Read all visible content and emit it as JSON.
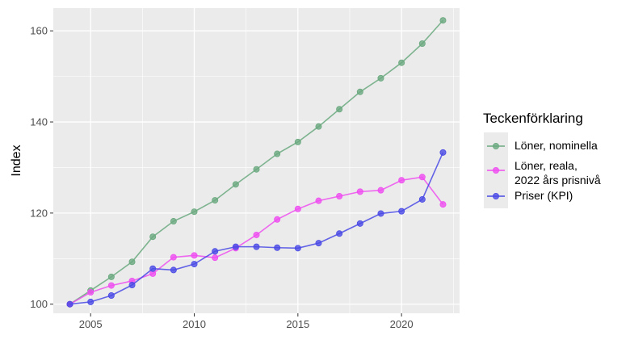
{
  "chart_data": {
    "type": "line",
    "xlabel": "",
    "ylabel": "Index",
    "xlim": [
      2003.2,
      2022.8
    ],
    "ylim": [
      98,
      165
    ],
    "x_ticks": [
      2005,
      2010,
      2015,
      2020
    ],
    "x_tick_labels": [
      "2005",
      "2010",
      "2015",
      "2020"
    ],
    "y_ticks": [
      100,
      120,
      140,
      160
    ],
    "y_tick_labels": [
      "100",
      "120",
      "140",
      "160"
    ],
    "grid": true,
    "panel_color": "#ebebeb",
    "x": [
      2004,
      2005,
      2006,
      2007,
      2008,
      2009,
      2010,
      2011,
      2012,
      2013,
      2014,
      2015,
      2016,
      2017,
      2018,
      2019,
      2020,
      2021,
      2022
    ],
    "series": [
      {
        "name": "Löner, nominella",
        "color": "#6aa97f",
        "values": [
          100,
          103,
          106,
          109.3,
          114.8,
          118.2,
          120.3,
          122.8,
          126.3,
          129.6,
          133,
          135.6,
          139,
          142.8,
          146.6,
          149.6,
          153,
          157.2,
          162.3
        ]
      },
      {
        "name": "Löner, reala, 2022 års prisnivå",
        "name_lines": [
          "Löner, reala,",
          "2022 års prisnivå"
        ],
        "color": "#ef4ef0",
        "values": [
          100,
          102.6,
          104.1,
          105.1,
          106.7,
          110.3,
          110.7,
          110.2,
          112.3,
          115.2,
          118.6,
          120.9,
          122.7,
          123.7,
          124.7,
          125,
          127.2,
          127.9,
          121.9
        ]
      },
      {
        "name": "Priser (KPI)",
        "color": "#4a4ae6",
        "values": [
          100,
          100.5,
          101.9,
          104.2,
          107.8,
          107.5,
          108.8,
          111.6,
          112.6,
          112.6,
          112.4,
          112.3,
          113.4,
          115.5,
          117.7,
          119.9,
          120.4,
          123,
          133.3
        ]
      }
    ],
    "legend": {
      "title": "Teckenförklaring",
      "position": "right"
    }
  }
}
